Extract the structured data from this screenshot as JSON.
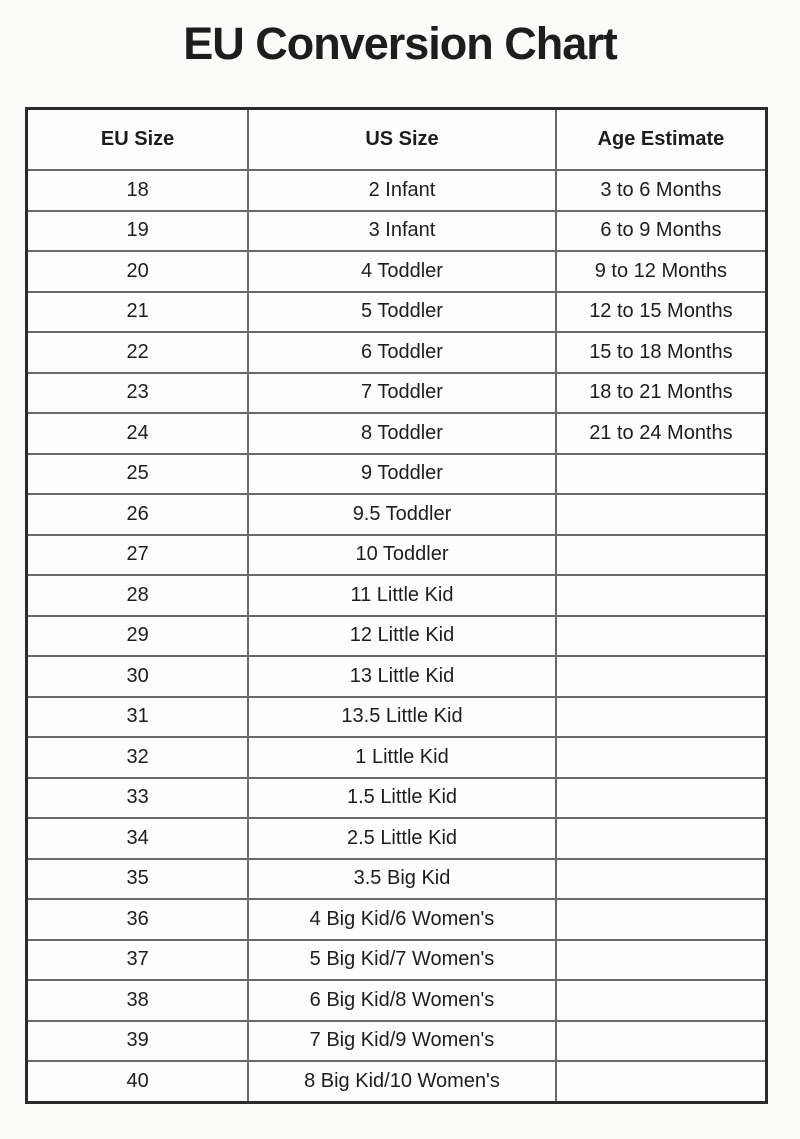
{
  "page": {
    "title": "EU Conversion Chart"
  },
  "colors": {
    "background": "#fbfbfa",
    "text": "#1d1d1d",
    "border_outer": "#2b2b2b",
    "border_inner": "#6a6a6a"
  },
  "chart_data": {
    "type": "table",
    "title": "EU Conversion Chart",
    "columns": [
      "EU Size",
      "US Size",
      "Age Estimate"
    ],
    "rows": [
      [
        "18",
        "2 Infant",
        "3 to 6 Months"
      ],
      [
        "19",
        "3 Infant",
        "6 to 9 Months"
      ],
      [
        "20",
        "4 Toddler",
        "9 to 12 Months"
      ],
      [
        "21",
        "5 Toddler",
        "12 to 15 Months"
      ],
      [
        "22",
        "6 Toddler",
        "15 to 18 Months"
      ],
      [
        "23",
        "7 Toddler",
        "18 to 21 Months"
      ],
      [
        "24",
        "8 Toddler",
        "21 to 24 Months"
      ],
      [
        "25",
        "9 Toddler",
        ""
      ],
      [
        "26",
        "9.5 Toddler",
        ""
      ],
      [
        "27",
        "10 Toddler",
        ""
      ],
      [
        "28",
        "11 Little Kid",
        ""
      ],
      [
        "29",
        "12 Little Kid",
        ""
      ],
      [
        "30",
        "13 Little Kid",
        ""
      ],
      [
        "31",
        "13.5 Little Kid",
        ""
      ],
      [
        "32",
        "1 Little Kid",
        ""
      ],
      [
        "33",
        "1.5 Little Kid",
        ""
      ],
      [
        "34",
        "2.5 Little Kid",
        ""
      ],
      [
        "35",
        "3.5 Big Kid",
        ""
      ],
      [
        "36",
        "4 Big Kid/6 Women's",
        ""
      ],
      [
        "37",
        "5 Big Kid/7 Women's",
        ""
      ],
      [
        "38",
        "6 Big Kid/8 Women's",
        ""
      ],
      [
        "39",
        "7 Big Kid/9 Women's",
        ""
      ],
      [
        "40",
        "8 Big Kid/10 Women's",
        ""
      ]
    ]
  }
}
